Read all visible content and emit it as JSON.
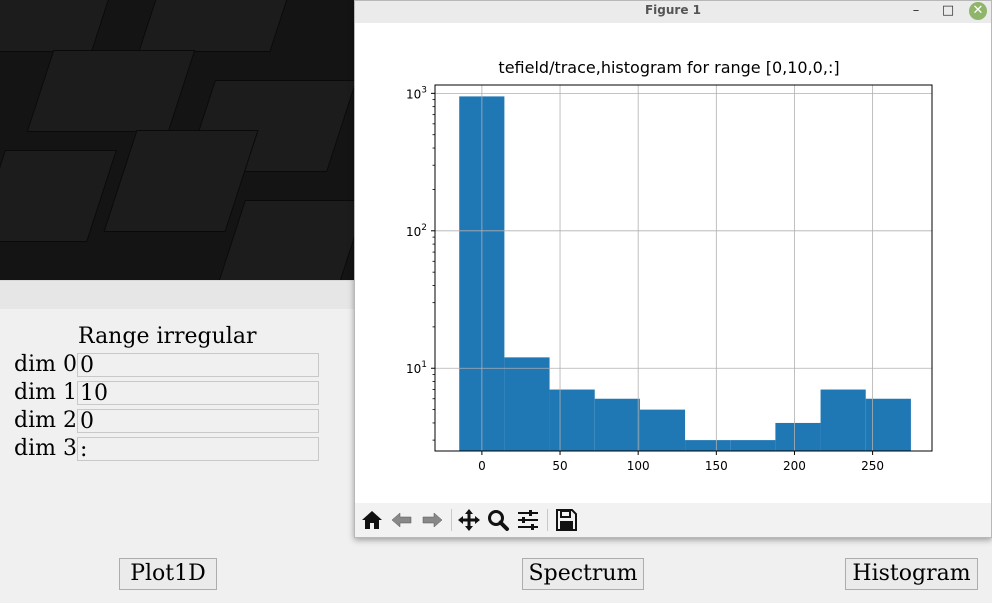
{
  "figure_window": {
    "title": "Figure 1",
    "minimize_glyph": "–",
    "maximize_glyph": "□",
    "close_glyph": "✕"
  },
  "panel": {
    "range_title": "Range irregular",
    "dims": [
      {
        "label": "dim 0",
        "value": "0"
      },
      {
        "label": "dim 1",
        "value": "10"
      },
      {
        "label": "dim 2",
        "value": "0"
      },
      {
        "label": "dim 3",
        "value": ":"
      }
    ],
    "buttons": {
      "plot1d": "Plot1D",
      "spectrum": "Spectrum",
      "histogram": "Histogram"
    }
  },
  "toolbar": {
    "icons": [
      "home-icon",
      "back-icon",
      "forward-icon",
      "pan-icon",
      "zoom-icon",
      "configure-subplots-icon",
      "save-icon"
    ]
  },
  "chart_data": {
    "type": "bar",
    "title": "tefield/trace,histogram for range [0,10,0,:]",
    "xlabel": "",
    "ylabel": "",
    "yscale": "log",
    "xlim": [
      -30,
      288
    ],
    "ylim": [
      2.5,
      1150
    ],
    "xticks": [
      0,
      50,
      100,
      150,
      200,
      250
    ],
    "yticks": [
      10,
      100,
      1000
    ],
    "ytick_labels": [
      {
        "base": "10",
        "exp": "1"
      },
      {
        "base": "10",
        "exp": "2"
      },
      {
        "base": "10",
        "exp": "3"
      }
    ],
    "grid": true,
    "bar_color": "#1f77b4",
    "bins": [
      {
        "x0": -14.5,
        "x1": 14.4,
        "value": 950
      },
      {
        "x0": 14.4,
        "x1": 43.3,
        "value": 12
      },
      {
        "x0": 43.3,
        "x1": 72.2,
        "value": 7
      },
      {
        "x0": 72.2,
        "x1": 101.1,
        "value": 6
      },
      {
        "x0": 101.1,
        "x1": 130.0,
        "value": 5
      },
      {
        "x0": 130.0,
        "x1": 158.9,
        "value": 3
      },
      {
        "x0": 158.9,
        "x1": 187.8,
        "value": 3
      },
      {
        "x0": 187.8,
        "x1": 216.7,
        "value": 4
      },
      {
        "x0": 216.7,
        "x1": 245.6,
        "value": 7
      },
      {
        "x0": 245.6,
        "x1": 274.5,
        "value": 6
      }
    ]
  }
}
